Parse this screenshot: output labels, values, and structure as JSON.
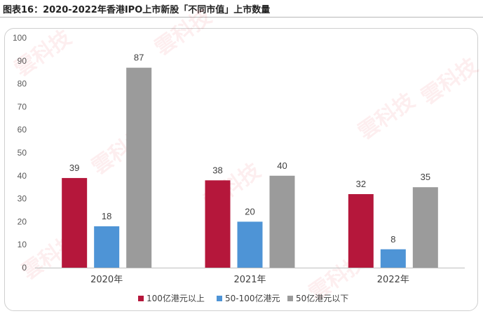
{
  "figure": {
    "title": "图表16：2020-2022年香港IPO上市新股「不同市值」上市数量",
    "watermark": "雲科技"
  },
  "chart_data": {
    "type": "bar",
    "categories": [
      "2020年",
      "2021年",
      "2022年"
    ],
    "series": [
      {
        "name": "100亿港元以上",
        "values": [
          39,
          38,
          32
        ],
        "color": "#b5173b"
      },
      {
        "name": "50-100亿港元",
        "values": [
          18,
          20,
          8
        ],
        "color": "#4e94d6"
      },
      {
        "name": "50亿港元以下",
        "values": [
          87,
          40,
          35
        ],
        "color": "#9b9b9b"
      }
    ],
    "ylim": [
      0,
      100
    ],
    "yticks": [
      0,
      10,
      20,
      30,
      40,
      50,
      60,
      70,
      80,
      90,
      100
    ],
    "grid": false,
    "legend_position": "bottom",
    "data_labels": true
  }
}
